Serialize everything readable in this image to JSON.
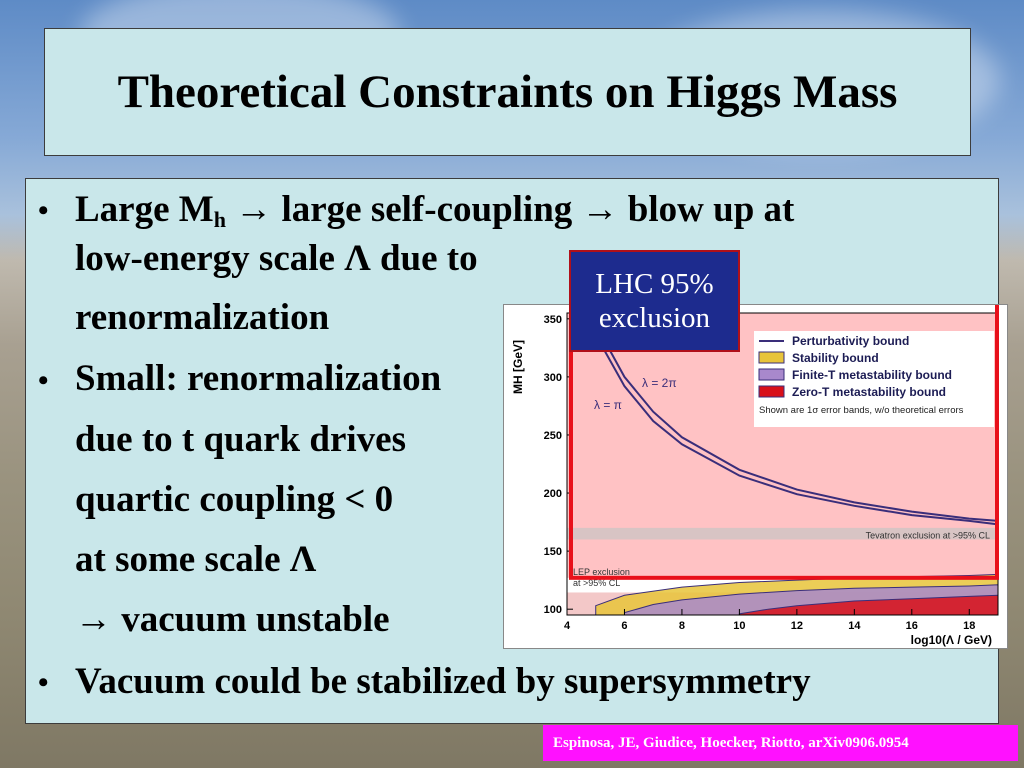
{
  "title": "Theoretical Constraints on Higgs Mass",
  "bullets": {
    "b1_pre": "Large M",
    "b1_sub": "h",
    "b1_post": " → large self-coupling → blow up at",
    "b1_l2": "low-energy scale Λ due to",
    "b1_l3": "renormalization",
    "b2_l1": "Small: renormalization",
    "b2_l2": "due to t quark drives",
    "b2_l3": "quartic coupling < 0",
    "b2_l4": "at some scale Λ",
    "b2_l5": "→ vacuum unstable",
    "b3": "Vacuum could be stabilized by supersymmetry",
    "bullet_glyph": "•"
  },
  "lhc_label": {
    "line1": "LHC 95%",
    "line2": "exclusion"
  },
  "citation": "Espinosa, JE, Giudice, Hoecker, Riotto, arXiv0906.0954",
  "colors": {
    "box_fill": "#c9e7ea",
    "lhc_fill": "#1d2b8e",
    "exclusion_red": "#e8101a",
    "citation_bg": "#ff11ff",
    "perturbativity": "#3a2e7a",
    "stability": "#e8c43a",
    "finite_t": "#a888cc",
    "zero_t": "#d8101a"
  },
  "chart_data": {
    "type": "line",
    "title": "",
    "xlabel": "log10(Λ / GeV)",
    "ylabel": "MH [GeV]",
    "xlim": [
      4,
      19
    ],
    "ylim": [
      95,
      355
    ],
    "x_ticks": [
      "4",
      "6",
      "8",
      "10",
      "12",
      "14",
      "16",
      "18"
    ],
    "y_ticks": [
      "100",
      "150",
      "200",
      "250",
      "300",
      "350"
    ],
    "legend": [
      "Perturbativity bound",
      "Stability bound",
      "Finite-T metastability bound",
      "Zero-T metastability bound"
    ],
    "legend_note": "Shown are 1σ error bands, w/o theoretical errors",
    "annotations": {
      "lambda_2pi": "λ = 2π",
      "lambda_pi": "λ = π",
      "tevatron": "Tevatron exclusion at >95% CL",
      "lep_line1": "LEP exclusion",
      "lep_line2": "at >95% CL"
    },
    "series": [
      {
        "name": "Perturbativity bound λ = 2π",
        "x": [
          5.0,
          6.0,
          7.0,
          8.0,
          10.0,
          12.0,
          14.0,
          16.0,
          18.0,
          19.0
        ],
        "values": [
          345,
          300,
          270,
          248,
          220,
          203,
          192,
          184,
          178,
          176
        ]
      },
      {
        "name": "Perturbativity bound λ = π",
        "x": [
          4.8,
          6.0,
          7.0,
          8.0,
          10.0,
          12.0,
          14.0,
          16.0,
          18.0,
          19.0
        ],
        "values": [
          345,
          292,
          262,
          242,
          215,
          199,
          189,
          181,
          176,
          173
        ]
      },
      {
        "name": "Stability bound",
        "x": [
          5.0,
          6.0,
          8.0,
          10.0,
          12.0,
          14.0,
          16.0,
          18.0,
          19.0
        ],
        "values": [
          103,
          112,
          119,
          123,
          125,
          127,
          128,
          129,
          130
        ]
      },
      {
        "name": "Finite-T metastability bound",
        "x": [
          6.0,
          7.0,
          8.0,
          10.0,
          12.0,
          14.0,
          16.0,
          18.0,
          19.0
        ],
        "values": [
          97,
          104,
          108,
          113,
          116,
          118,
          119,
          120,
          121
        ]
      },
      {
        "name": "Zero-T metastability bound",
        "x": [
          10.0,
          11.0,
          12.0,
          14.0,
          16.0,
          18.0,
          19.0
        ],
        "values": [
          96,
          100,
          103,
          107,
          109,
          111,
          112
        ]
      }
    ],
    "bands": {
      "tevatron": [
        160,
        170
      ],
      "lep": [
        95,
        114.4
      ],
      "lhc": [
        127,
        600
      ]
    },
    "grid": false,
    "legend_position": "top-right"
  }
}
